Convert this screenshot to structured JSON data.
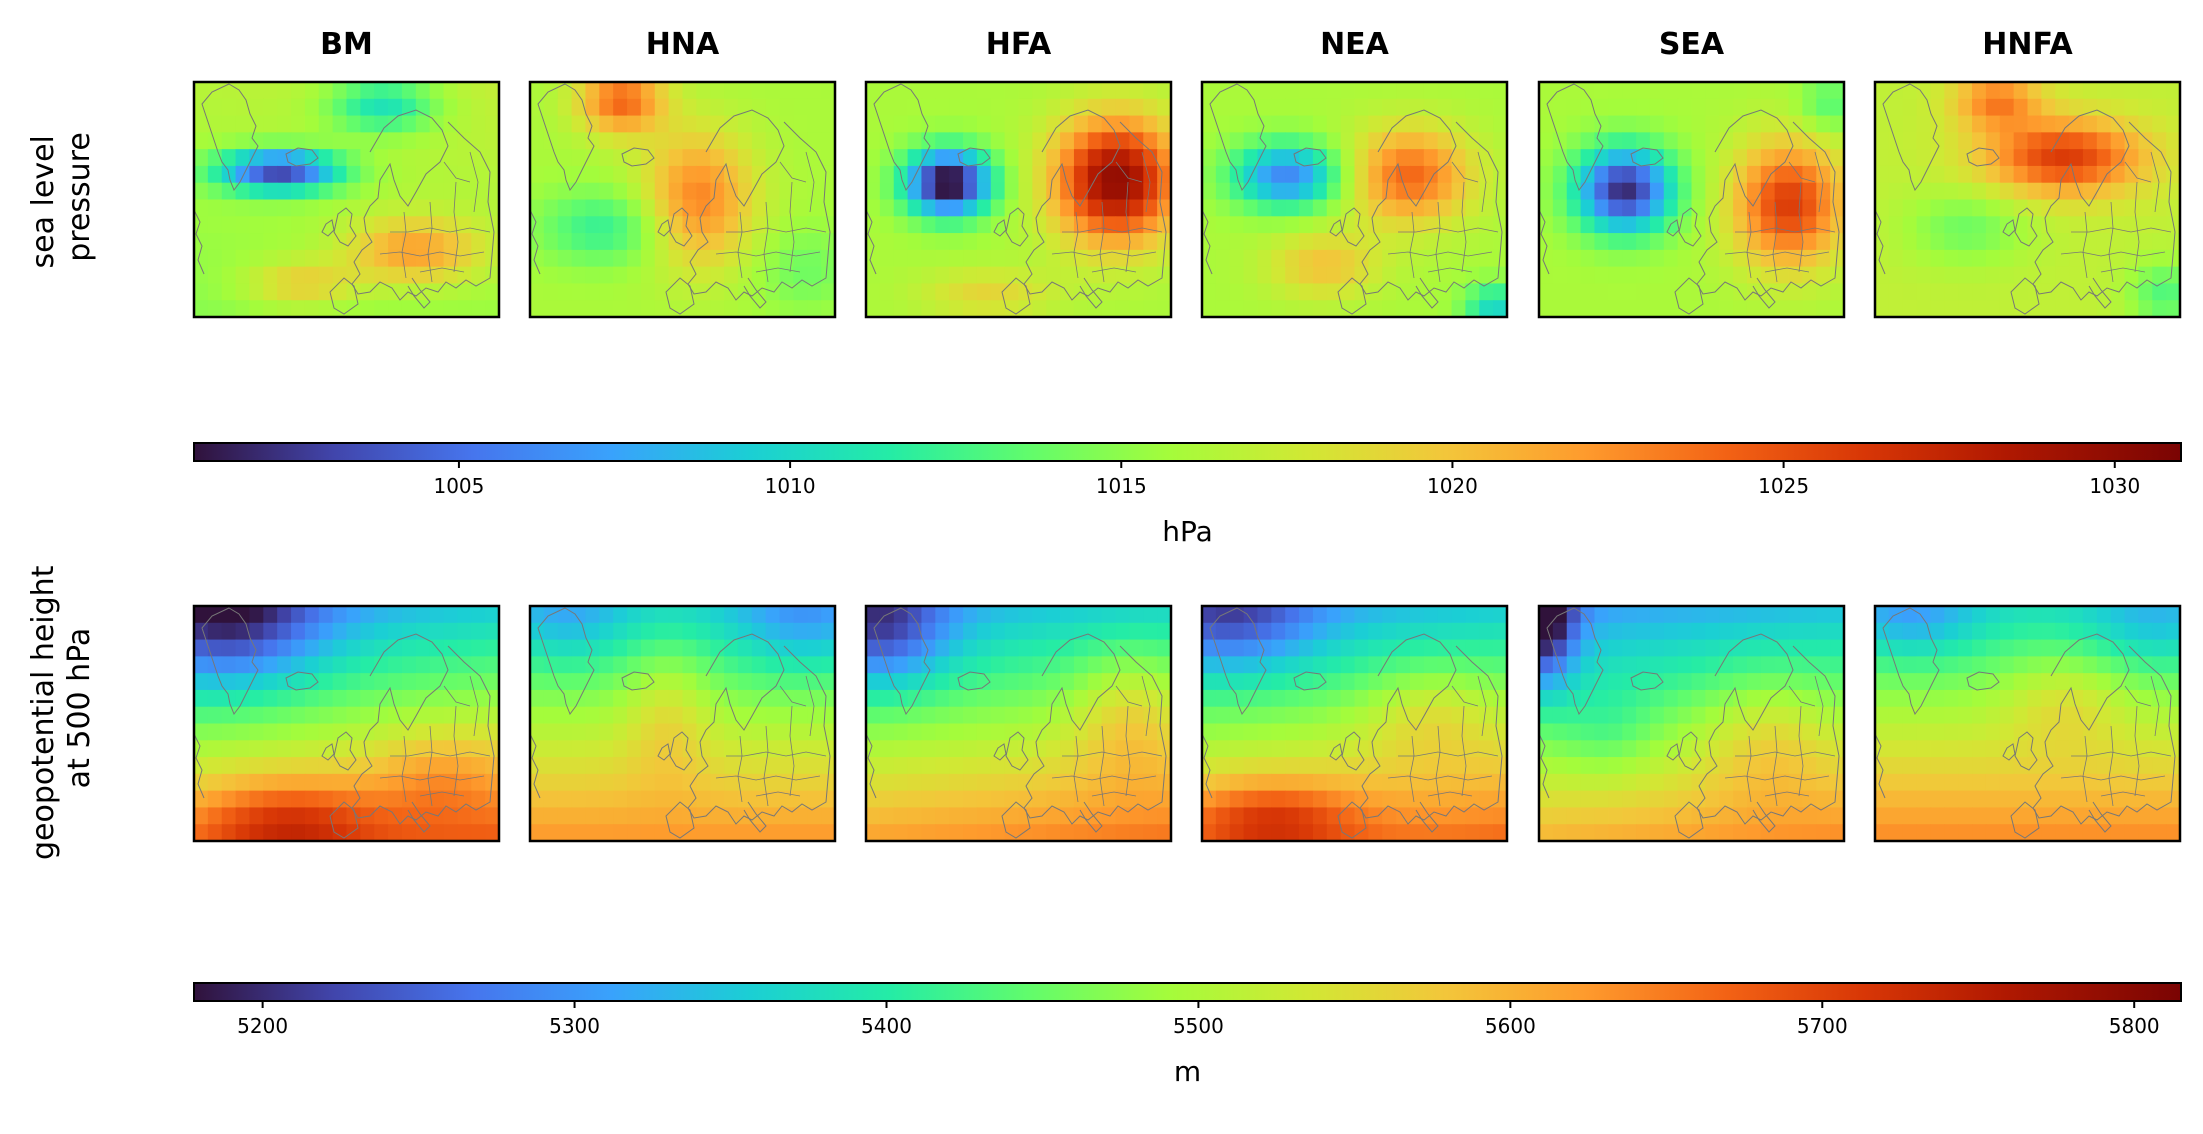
{
  "chart_data": {
    "type": "heatmap",
    "region": "North Atlantic / Europe",
    "columns": [
      "BM",
      "HNA",
      "HFA",
      "NEA",
      "SEA",
      "HNFA"
    ],
    "colormap": "turbo",
    "rows": [
      {
        "label": "sea level\npressure",
        "variable": "slp",
        "colorbar": {
          "label": "hPa",
          "vmin": 1001,
          "vmax": 1031,
          "ticks": [
            1005,
            1010,
            1015,
            1020,
            1025,
            1030
          ]
        }
      },
      {
        "label": "geopotential height\nat 500 hPa",
        "variable": "z500",
        "colorbar": {
          "label": "m",
          "vmin": 5178,
          "vmax": 5815,
          "ticks": [
            5200,
            5300,
            5400,
            5500,
            5600,
            5700,
            5800
          ]
        }
      }
    ],
    "grid": {
      "nx": 22,
      "ny": 14
    },
    "patterns": {
      "slp": {
        "BM": {
          "base": 1016,
          "grad": [
            0.6,
            -1.8
          ],
          "blobs": [
            [
              0.28,
              0.38,
              0.2,
              0.09,
              -13
            ],
            [
              0.62,
              0.1,
              0.18,
              0.12,
              -6
            ],
            [
              0.72,
              0.72,
              0.22,
              0.14,
              6
            ],
            [
              0.35,
              0.86,
              0.18,
              0.1,
              4
            ]
          ]
        },
        "HNA": {
          "base": 1016,
          "grad": [
            0,
            0
          ],
          "blobs": [
            [
              0.3,
              0.08,
              0.14,
              0.14,
              8
            ],
            [
              0.55,
              0.5,
              0.18,
              0.28,
              7
            ],
            [
              0.25,
              0.62,
              0.22,
              0.16,
              -4
            ],
            [
              0.9,
              0.8,
              0.16,
              0.18,
              -2
            ]
          ]
        },
        "HFA": {
          "base": 1016,
          "grad": [
            0,
            0
          ],
          "blobs": [
            [
              0.27,
              0.43,
              0.14,
              0.14,
              -16
            ],
            [
              0.82,
              0.42,
              0.2,
              0.26,
              14
            ],
            [
              0.4,
              0.9,
              0.22,
              0.1,
              3
            ]
          ]
        },
        "NEA": {
          "base": 1016,
          "grad": [
            0,
            0
          ],
          "blobs": [
            [
              0.28,
              0.4,
              0.18,
              0.14,
              -10
            ],
            [
              0.68,
              0.4,
              0.2,
              0.2,
              8
            ],
            [
              0.4,
              0.78,
              0.18,
              0.14,
              4
            ],
            [
              0.96,
              0.96,
              0.1,
              0.1,
              -6
            ]
          ]
        },
        "SEA": {
          "base": 1016,
          "grad": [
            0,
            0
          ],
          "blobs": [
            [
              0.28,
              0.46,
              0.16,
              0.18,
              -14
            ],
            [
              0.82,
              0.52,
              0.18,
              0.26,
              10
            ],
            [
              0.95,
              0.1,
              0.1,
              0.12,
              -3
            ]
          ]
        },
        "HNFA": {
          "base": 1017,
          "grad": [
            0,
            0
          ],
          "blobs": [
            [
              0.62,
              0.32,
              0.26,
              0.16,
              9
            ],
            [
              0.4,
              0.08,
              0.14,
              0.12,
              6
            ],
            [
              0.3,
              0.62,
              0.2,
              0.16,
              -3
            ],
            [
              0.95,
              0.9,
              0.12,
              0.14,
              -4
            ]
          ]
        }
      },
      "z500": {
        "BM": {
          "base": 5490,
          "grad": [
            50,
            330
          ],
          "blobs": [
            [
              0.12,
              0.05,
              0.3,
              0.3,
              -150
            ],
            [
              0.3,
              0.92,
              0.3,
              0.18,
              110
            ],
            [
              0.8,
              0.72,
              0.2,
              0.2,
              50
            ]
          ]
        },
        "HNA": {
          "base": 5500,
          "grad": [
            0,
            260
          ],
          "blobs": [
            [
              0.9,
              0.05,
              0.24,
              0.24,
              -80
            ],
            [
              0.12,
              0.05,
              0.2,
              0.2,
              -60
            ],
            [
              0.45,
              0.45,
              0.14,
              0.28,
              60
            ]
          ]
        },
        "HFA": {
          "base": 5490,
          "grad": [
            40,
            300
          ],
          "blobs": [
            [
              0.05,
              0.1,
              0.22,
              0.25,
              -140
            ],
            [
              0.86,
              0.45,
              0.18,
              0.28,
              70
            ]
          ]
        },
        "NEA": {
          "base": 5490,
          "grad": [
            40,
            320
          ],
          "blobs": [
            [
              0.1,
              0.05,
              0.28,
              0.24,
              -110
            ],
            [
              0.22,
              0.9,
              0.28,
              0.16,
              110
            ],
            [
              0.75,
              0.45,
              0.22,
              0.2,
              60
            ]
          ]
        },
        "SEA": {
          "base": 5470,
          "grad": [
            40,
            300
          ],
          "blobs": [
            [
              0.02,
              0.05,
              0.1,
              0.28,
              -190
            ],
            [
              0.22,
              0.55,
              0.16,
              0.2,
              -40
            ],
            [
              0.75,
              0.55,
              0.22,
              0.28,
              60
            ]
          ]
        },
        "HNFA": {
          "base": 5510,
          "grad": [
            0,
            260
          ],
          "blobs": [
            [
              0.12,
              0.05,
              0.22,
              0.18,
              -80
            ],
            [
              0.92,
              0.08,
              0.22,
              0.2,
              -60
            ],
            [
              0.62,
              0.4,
              0.2,
              0.2,
              60
            ]
          ]
        }
      }
    }
  }
}
